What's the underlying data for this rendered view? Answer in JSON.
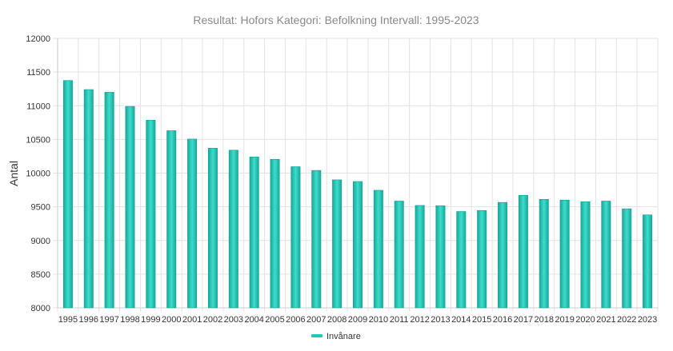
{
  "chart_data": {
    "type": "bar",
    "title": "Resultat: Hofors Kategori: Befolkning Intervall: 1995-2023",
    "xlabel": "",
    "ylabel": "Antal",
    "ylim": [
      8000,
      12000
    ],
    "yticks": [
      8000,
      8500,
      9000,
      9500,
      10000,
      10500,
      11000,
      11500,
      12000
    ],
    "grid": true,
    "legend_position": "bottom",
    "categories": [
      "1995",
      "1996",
      "1997",
      "1998",
      "1999",
      "2000",
      "2001",
      "2002",
      "2003",
      "2004",
      "2005",
      "2006",
      "2007",
      "2008",
      "2009",
      "2010",
      "2011",
      "2012",
      "2013",
      "2014",
      "2015",
      "2016",
      "2017",
      "2018",
      "2019",
      "2020",
      "2021",
      "2022",
      "2023"
    ],
    "series": [
      {
        "name": "Invånare",
        "color": "#1fc7b6",
        "values": [
          11375,
          11240,
          11200,
          10990,
          10785,
          10630,
          10505,
          10370,
          10340,
          10240,
          10205,
          10095,
          10040,
          9900,
          9875,
          9745,
          9585,
          9520,
          9515,
          9430,
          9445,
          9565,
          9670,
          9610,
          9600,
          9575,
          9585,
          9470,
          9380
        ]
      }
    ]
  }
}
